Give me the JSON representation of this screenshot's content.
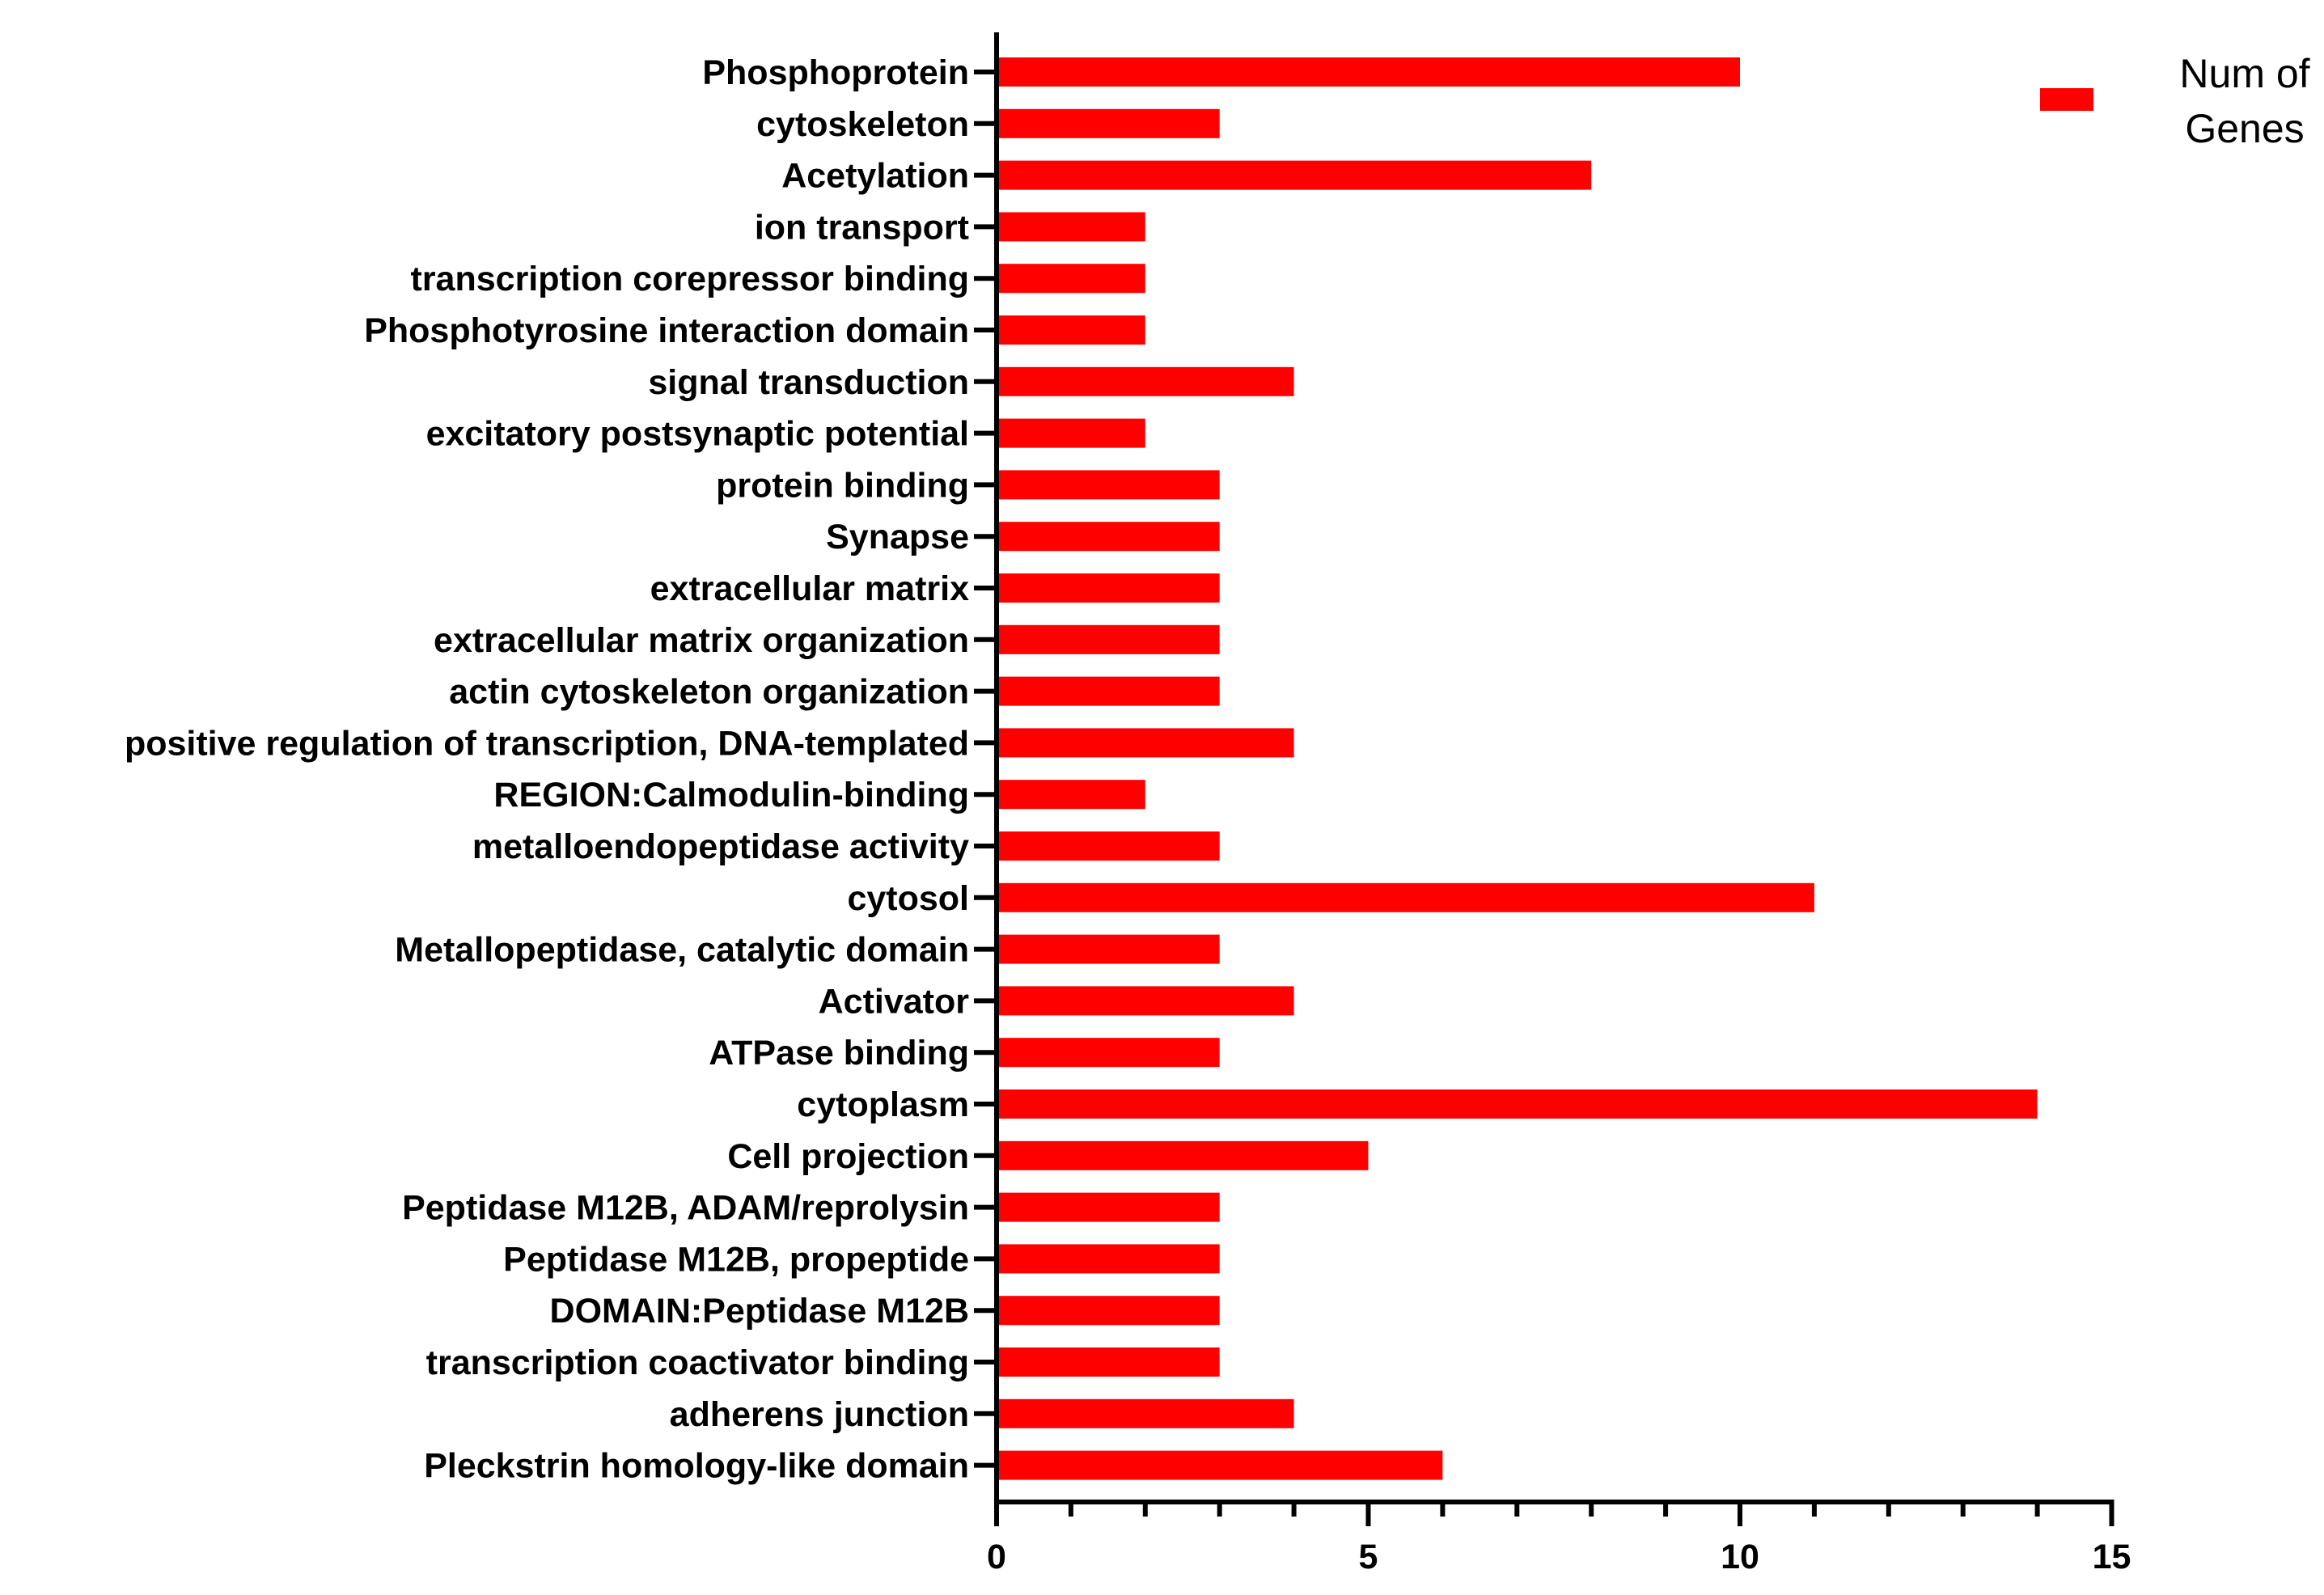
{
  "chart_data": {
    "type": "bar",
    "orientation": "horizontal",
    "categories": [
      "Phosphoprotein",
      "cytoskeleton",
      "Acetylation",
      "ion transport",
      "transcription corepressor binding",
      "Phosphotyrosine interaction domain",
      "signal transduction",
      "excitatory postsynaptic potential",
      "protein binding",
      "Synapse",
      "extracellular matrix",
      "extracellular matrix organization",
      "actin cytoskeleton organization",
      "positive regulation of transcription, DNA-templated",
      "REGION:Calmodulin-binding",
      "metalloendopeptidase activity",
      "cytosol",
      "Metallopeptidase, catalytic domain",
      "Activator",
      "ATPase binding",
      "cytoplasm",
      "Cell projection",
      "Peptidase M12B, ADAM/reprolysin",
      "Peptidase M12B, propeptide",
      "DOMAIN:Peptidase M12B",
      "transcription coactivator binding",
      "adherens junction",
      "Pleckstrin homology-like domain"
    ],
    "series": [
      {
        "name": "Num of Genes",
        "color": "#ff0000",
        "values": [
          10,
          3,
          8,
          2,
          2,
          2,
          4,
          2,
          3,
          3,
          3,
          3,
          3,
          4,
          2,
          3,
          11,
          3,
          4,
          3,
          14,
          5,
          3,
          3,
          3,
          3,
          4,
          6
        ]
      }
    ],
    "xlim": [
      0,
      15
    ],
    "x_major_ticks": [
      0,
      5,
      10,
      15
    ],
    "x_minor_step": 1,
    "xlabel": "",
    "ylabel": "",
    "title": "",
    "legend": {
      "position": "top-right",
      "lines": [
        "Num of",
        "Genes"
      ]
    },
    "grid": false
  }
}
